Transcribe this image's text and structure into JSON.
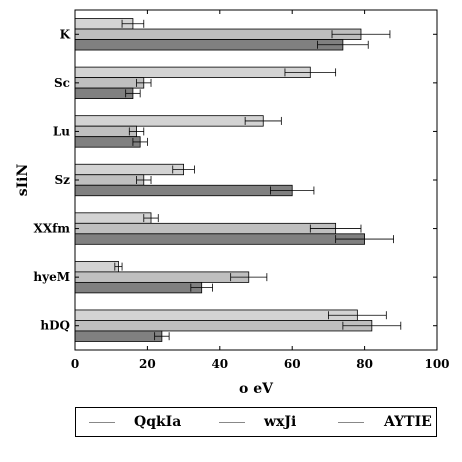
{
  "chart_data": {
    "type": "bar",
    "orientation": "horizontal",
    "title": "",
    "xlabel": "o eV",
    "ylabel": "sIiN",
    "xlim": [
      0,
      100
    ],
    "xticks": [
      0,
      20,
      40,
      60,
      80,
      100
    ],
    "categories": [
      "K",
      "Sc",
      "Lu",
      "Sz",
      "XXfm",
      "hyeM",
      "hDQ"
    ],
    "series": [
      {
        "name": "QqkIa",
        "color": "#d3d3d3",
        "values": [
          16,
          65,
          52,
          30,
          21,
          12,
          78
        ],
        "errors": [
          3,
          7,
          5,
          3,
          2,
          1,
          8
        ]
      },
      {
        "name": "wxJi",
        "color": "#bfbfbf",
        "values": [
          79,
          19,
          17,
          19,
          72,
          48,
          82
        ],
        "errors": [
          8,
          2,
          2,
          2,
          7,
          5,
          8
        ]
      },
      {
        "name": "AYTIE",
        "color": "#808080",
        "values": [
          74,
          16,
          18,
          60,
          80,
          35,
          24
        ],
        "errors": [
          7,
          2,
          2,
          6,
          8,
          3,
          2
        ]
      }
    ],
    "grid": false,
    "legend_position": "bottom"
  }
}
